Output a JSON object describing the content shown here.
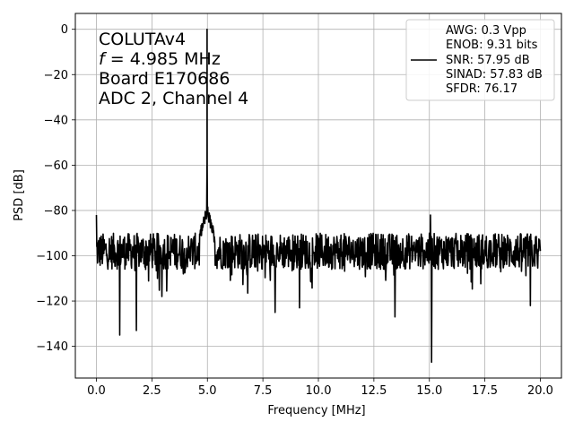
{
  "chart_data": {
    "type": "line",
    "xlabel": "Frequency [MHz]",
    "ylabel": "PSD [dB]",
    "xlim": [
      -0.95,
      20.95
    ],
    "ylim": [
      -154,
      7
    ],
    "xticks": [
      0.0,
      2.5,
      5.0,
      7.5,
      10.0,
      12.5,
      15.0,
      17.5,
      20.0
    ],
    "xtick_labels": [
      "0.0",
      "2.5",
      "5.0",
      "7.5",
      "10.0",
      "12.5",
      "15.0",
      "17.5",
      "20.0"
    ],
    "yticks": [
      0,
      -20,
      -40,
      -60,
      -80,
      -100,
      -120,
      -140
    ],
    "ytick_labels": [
      "0",
      "−20",
      "−40",
      "−60",
      "−80",
      "−100",
      "−120",
      "−140"
    ],
    "grid": true,
    "legend_position": "top-right",
    "annotation": {
      "line1": "COLUTAv4",
      "line2_var": "f",
      "line2_rest": " = 4.985 MHz",
      "line3": "Board E170686",
      "line4": "ADC 2, Channel 4"
    },
    "legend_lines": [
      "AWG: 0.3 Vpp",
      "ENOB: 9.31 bits",
      "SNR: 57.95 dB",
      "SINAD: 57.83 dB",
      "SFDR: 76.17"
    ],
    "series": [
      {
        "line_color": "#000000",
        "peak": {
          "x": 4.985,
          "y": 0
        },
        "noise_floor_db": -98,
        "spurs": [
          {
            "x": 0.0,
            "y": -82
          },
          {
            "x": 1.05,
            "y": -135
          },
          {
            "x": 1.8,
            "y": -133
          },
          {
            "x": 2.95,
            "y": -118
          },
          {
            "x": 8.05,
            "y": -125
          },
          {
            "x": 9.15,
            "y": -123
          },
          {
            "x": 13.45,
            "y": -127
          },
          {
            "x": 15.05,
            "y": -82
          },
          {
            "x": 15.1,
            "y": -147
          },
          {
            "x": 19.55,
            "y": -122
          }
        ],
        "x_range": [
          0.0,
          20.0
        ],
        "points": 1200
      }
    ]
  }
}
